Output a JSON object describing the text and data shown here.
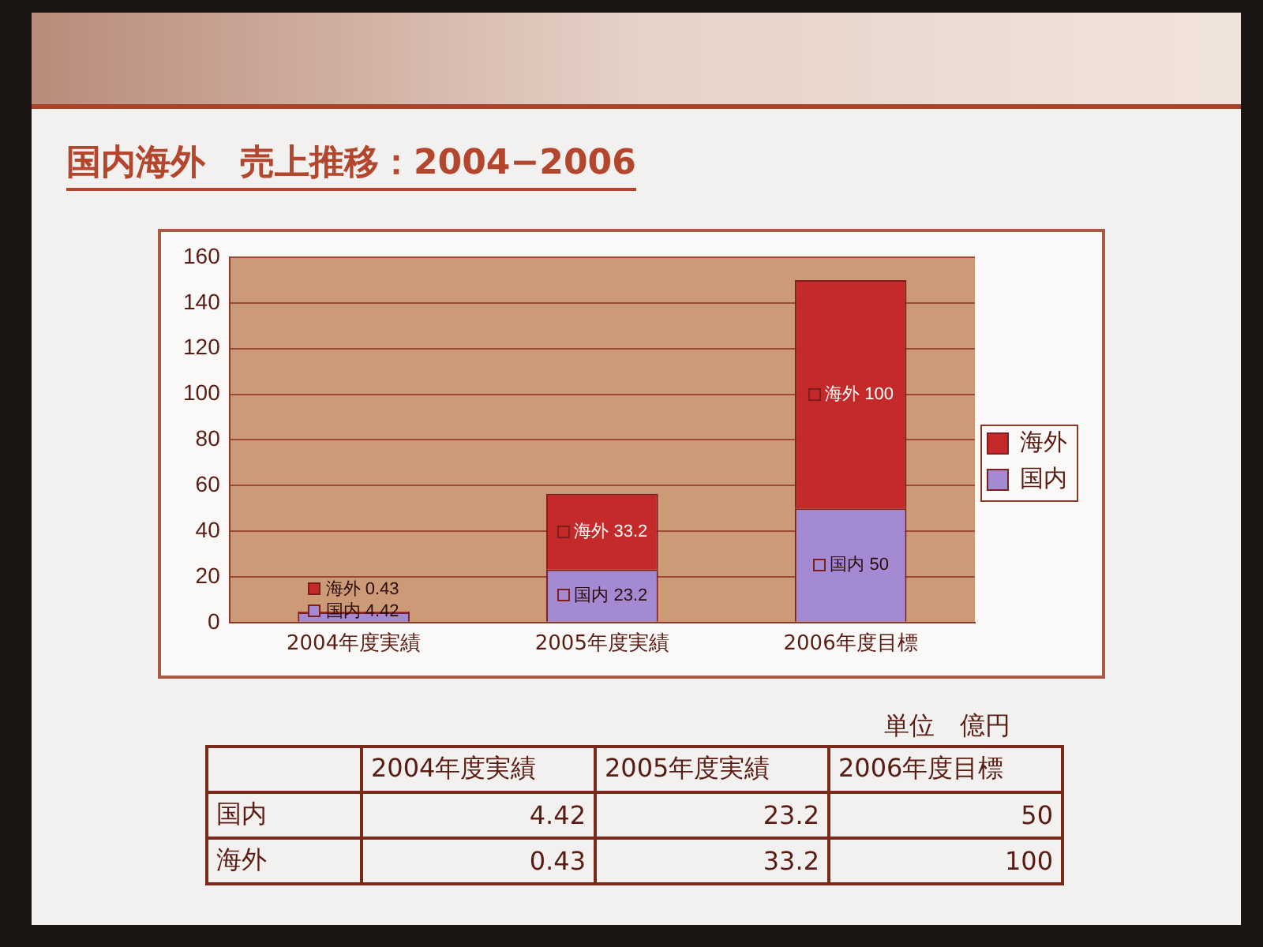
{
  "chart_data": [
    {
      "type": "bar",
      "title": "国内海外　売上推移：2004−2006",
      "categories": [
        "2004年度実績",
        "2005年度実績",
        "2006年度目標"
      ],
      "series": [
        {
          "name": "国内",
          "color": "#a48ad2",
          "values": [
            4.42,
            23.2,
            50
          ],
          "value_labels": [
            "国内 4.42",
            "国内 23.2",
            "国内 50"
          ]
        },
        {
          "name": "海外",
          "color": "#c42a2a",
          "values": [
            0.43,
            33.2,
            100
          ],
          "value_labels": [
            "海外 0.43",
            "海外 33.2",
            "海外 100"
          ]
        }
      ],
      "stacked": true,
      "ylim": [
        0,
        160
      ],
      "yticks": [
        0,
        20,
        40,
        60,
        80,
        100,
        120,
        140,
        160
      ],
      "grid": "y",
      "legend": "right"
    },
    {
      "type": "other",
      "categories": [
        "2004年度実績",
        "2005年度実績",
        "2006年度目標"
      ],
      "series": [
        {
          "name": "国内",
          "values": [
            4.42,
            23.2,
            50
          ]
        },
        {
          "name": "海外",
          "values": [
            0.43,
            33.2,
            100
          ]
        }
      ],
      "data_labels": true,
      "annotations": [
        "単位　億円"
      ]
    }
  ]
}
